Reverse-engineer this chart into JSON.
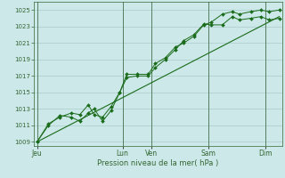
{
  "title": "",
  "xlabel": "Pression niveau de la mer( hPa )",
  "ylabel": "",
  "bg_color": "#cce8e8",
  "plot_bg_color": "#cce8e8",
  "grid_color": "#aacccc",
  "line_color": "#1a6b1a",
  "marker_color": "#1a6b1a",
  "axis_color": "#336633",
  "text_color": "#336633",
  "ylim": [
    1008.5,
    1026.0
  ],
  "yticks": [
    1009,
    1011,
    1013,
    1015,
    1017,
    1019,
    1021,
    1023,
    1025
  ],
  "xtick_labels": [
    "Jeu",
    "Lun",
    "Ven",
    "Sam",
    "Dim"
  ],
  "xtick_positions": [
    0,
    3,
    4,
    6,
    8
  ],
  "x_min": -0.1,
  "x_max": 8.6,
  "series1": {
    "x": [
      0,
      0.4,
      0.8,
      1.2,
      1.5,
      1.8,
      2.0,
      2.3,
      2.6,
      2.9,
      3.15,
      3.5,
      3.9,
      4.15,
      4.5,
      4.85,
      5.15,
      5.5,
      5.85,
      6.1,
      6.5,
      6.85,
      7.1,
      7.5,
      7.85,
      8.15,
      8.5
    ],
    "y": [
      1009,
      1011.2,
      1012.0,
      1012.5,
      1012.3,
      1013.5,
      1012.3,
      1012.0,
      1013.3,
      1015.0,
      1017.2,
      1017.2,
      1017.2,
      1018.5,
      1019.2,
      1020.5,
      1021.0,
      1021.8,
      1023.2,
      1023.5,
      1024.5,
      1024.8,
      1024.5,
      1024.8,
      1025.0,
      1024.8,
      1025.0
    ]
  },
  "series2": {
    "x": [
      0,
      0.4,
      0.8,
      1.2,
      1.5,
      1.8,
      2.0,
      2.3,
      2.6,
      2.9,
      3.15,
      3.5,
      3.9,
      4.15,
      4.5,
      4.85,
      5.15,
      5.5,
      5.85,
      6.1,
      6.5,
      6.85,
      7.1,
      7.5,
      7.85,
      8.15,
      8.5
    ],
    "y": [
      1009,
      1011.0,
      1012.2,
      1012.0,
      1011.5,
      1012.5,
      1013.0,
      1011.5,
      1012.8,
      1015.0,
      1016.8,
      1017.0,
      1017.0,
      1018.0,
      1019.0,
      1020.2,
      1021.3,
      1022.0,
      1023.3,
      1023.2,
      1023.2,
      1024.2,
      1023.8,
      1024.0,
      1024.2,
      1023.8,
      1024.0
    ]
  },
  "series3": {
    "x": [
      0,
      8.5
    ],
    "y": [
      1009.0,
      1024.2
    ]
  },
  "figsize": [
    3.2,
    2.0
  ],
  "dpi": 100
}
